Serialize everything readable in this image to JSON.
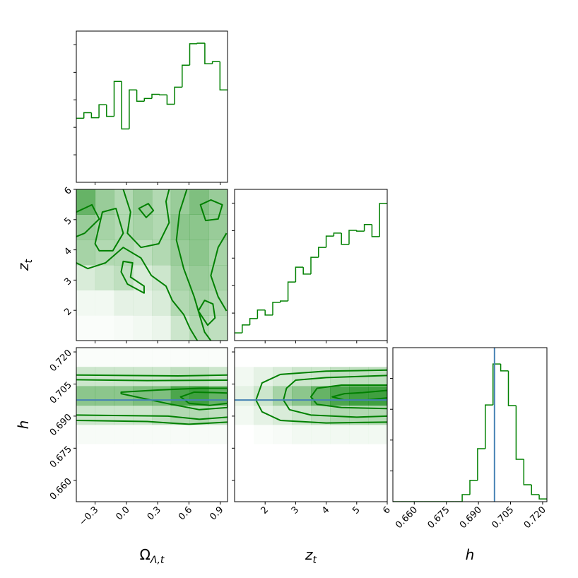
{
  "chart_data": [
    {
      "type": "histogram",
      "color": "#008000",
      "bins": [
        -0.48,
        -0.4075,
        -0.335,
        -0.2625,
        -0.19,
        -0.1175,
        -0.045,
        0.0275,
        0.1,
        0.1725,
        0.245,
        0.3175,
        0.39,
        0.4625,
        0.535,
        0.6075,
        0.68,
        0.7525,
        0.825,
        0.8975,
        0.97
      ],
      "values": [
        233,
        253,
        235,
        282,
        240,
        367,
        194,
        336,
        295,
        305,
        320,
        318,
        284,
        346,
        426,
        504,
        506,
        431,
        439,
        336
      ],
      "xlim": [
        -0.48,
        0.97
      ],
      "ylim": [
        0,
        550
      ],
      "xticks": [
        -0.3,
        0,
        0.3,
        0.6,
        0.9
      ],
      "yticks": [
        100,
        200,
        300,
        400,
        500
      ],
      "xtick_labels": false,
      "ytick_labels": false
    },
    {
      "type": "contour",
      "color": "#008000",
      "xlim": [
        -0.48,
        0.97
      ],
      "ylim": [
        1,
        6
      ],
      "xticks": [
        -0.3,
        0,
        0.3,
        0.6,
        0.9
      ],
      "yticks": [
        2,
        3,
        4,
        5,
        6
      ],
      "xtick_labels": false,
      "ytick_labels": true,
      "y_label": {
        "text": "z",
        "subscript": "t"
      },
      "density": [
        [
          0.6,
          0.4,
          0.3,
          0.4,
          0.3,
          0.4,
          0.5,
          0.4
        ],
        [
          0.4,
          0.35,
          0.3,
          0.35,
          0.3,
          0.45,
          0.45,
          0.4
        ],
        [
          0.35,
          0.3,
          0.3,
          0.25,
          0.3,
          0.4,
          0.45,
          0.35
        ],
        [
          0.15,
          0.2,
          0.25,
          0.15,
          0.2,
          0.35,
          0.4,
          0.35
        ],
        [
          0.05,
          0.05,
          0.1,
          0.1,
          0.15,
          0.3,
          0.35,
          0.3
        ],
        [
          0.02,
          0.02,
          0.03,
          0.05,
          0.08,
          0.2,
          0.3,
          0.25
        ]
      ],
      "contours": [
        {
          "closed": false,
          "x": [
            -0.48,
            -0.37,
            -0.2,
            -0.03,
            0.14,
            0.24,
            0.38,
            0.44,
            0.55,
            0.61,
            0.68
          ],
          "y": [
            3.57,
            3.38,
            3.57,
            4.08,
            3.73,
            3.15,
            2.8,
            2.33,
            1.86,
            1.4,
            1.0
          ]
        },
        {
          "closed": false,
          "x": [
            -0.03,
            0.04,
            0.01,
            0.14,
            0.31,
            0.41,
            0.38,
            0.41
          ],
          "y": [
            6,
            5.25,
            4.55,
            4.08,
            4.2,
            4.9,
            5.6,
            6
          ]
        },
        {
          "closed": false,
          "x": [
            0.58,
            0.51,
            0.48,
            0.55,
            0.65,
            0.75,
            0.81
          ],
          "y": [
            6,
            5.25,
            4.32,
            3.38,
            2.45,
            1.28,
            1.0
          ]
        },
        {
          "closed": false,
          "x": [
            0.96,
            0.88,
            0.81,
            0.88,
            0.96
          ],
          "y": [
            4.55,
            4.08,
            3.15,
            2.45,
            1.98
          ]
        },
        {
          "closed": false,
          "x": [
            -0.48,
            -0.33,
            -0.26,
            -0.4,
            -0.48
          ],
          "y": [
            5.25,
            5.49,
            5.02,
            4.55,
            4.44
          ]
        },
        {
          "closed": true,
          "x": [
            -0.3,
            -0.23,
            -0.1,
            -0.03,
            -0.13,
            -0.26
          ],
          "y": [
            4.2,
            5.25,
            5.37,
            4.55,
            3.97,
            3.97
          ]
        },
        {
          "closed": true,
          "x": [
            0.12,
            0.21,
            0.26,
            0.19
          ],
          "y": [
            5.37,
            5.53,
            5.3,
            5.07
          ]
        },
        {
          "closed": true,
          "x": [
            0.71,
            0.81,
            0.92,
            0.88,
            0.76
          ],
          "y": [
            5.49,
            5.65,
            5.49,
            5.02,
            4.97
          ]
        },
        {
          "closed": true,
          "x": [
            0.69,
            0.75,
            0.83,
            0.85,
            0.78
          ],
          "y": [
            1.98,
            2.33,
            2.21,
            1.75,
            1.51
          ]
        },
        {
          "closed": true,
          "x": [
            -0.03,
            0.06,
            0.04,
            0.17,
            0.17,
            0.01,
            -0.05
          ],
          "y": [
            3.62,
            3.57,
            3.1,
            2.8,
            2.57,
            2.87,
            3.27
          ]
        }
      ]
    },
    {
      "type": "histogram",
      "color": "#008000",
      "bins": [
        1,
        1.25,
        1.5,
        1.75,
        2,
        2.25,
        2.5,
        2.75,
        3,
        3.25,
        3.5,
        3.75,
        4,
        4.25,
        4.5,
        4.75,
        5,
        5.25,
        5.5,
        5.75,
        6
      ],
      "values": [
        28,
        57,
        80,
        111,
        93,
        139,
        144,
        213,
        267,
        242,
        303,
        339,
        380,
        391,
        350,
        401,
        398,
        422,
        378,
        499
      ],
      "xlim": [
        1,
        6
      ],
      "ylim": [
        0,
        550
      ],
      "xticks": [
        2,
        3,
        4,
        5,
        6
      ],
      "yticks": [
        100,
        200,
        300,
        400,
        500
      ],
      "xtick_labels": false,
      "ytick_labels": false
    },
    {
      "type": "contour",
      "color": "#008000",
      "xlim": [
        -0.48,
        0.97
      ],
      "ylim": [
        0.65,
        0.722
      ],
      "xticks": [
        {
          "value": -0.3,
          "label": "−0.3"
        },
        {
          "value": 0.0,
          "label": "0.0"
        },
        0.3,
        0.6,
        0.9
      ],
      "yticks": [
        {
          "value": 0.66,
          "label": "0.660"
        },
        0.675,
        {
          "value": 0.69,
          "label": "0.690"
        },
        0.705,
        {
          "value": 0.72,
          "label": "0.720"
        }
      ],
      "xtick_labels": true,
      "ytick_labels": true,
      "x_label": {
        "text": "Ω",
        "subscript": "Λ,t"
      },
      "y_label": {
        "text": "h",
        "subscript": null
      },
      "hline": 0.6975,
      "truth_color": "#4682b4",
      "density": [
        [
          0.02,
          0.02,
          0.02,
          0.02,
          0.02,
          0.02,
          0.02,
          0.02
        ],
        [
          0.2,
          0.2,
          0.2,
          0.2,
          0.2,
          0.25,
          0.25,
          0.2
        ],
        [
          0.45,
          0.45,
          0.45,
          0.5,
          0.5,
          0.7,
          0.75,
          0.6
        ],
        [
          0.2,
          0.2,
          0.2,
          0.2,
          0.25,
          0.3,
          0.3,
          0.25
        ],
        [
          0.03,
          0.03,
          0.03,
          0.03,
          0.03,
          0.03,
          0.03,
          0.03
        ],
        [
          0,
          0,
          0,
          0,
          0,
          0,
          0,
          0
        ],
        [
          0,
          0,
          0,
          0,
          0,
          0,
          0,
          0
        ],
        [
          0,
          0,
          0,
          0,
          0,
          0,
          0,
          0
        ]
      ],
      "contours": [
        {
          "closed": false,
          "x": [
            -0.48,
            0.0,
            0.5,
            0.97
          ],
          "y": [
            0.7092,
            0.709,
            0.7088,
            0.7092
          ]
        },
        {
          "closed": false,
          "x": [
            -0.48,
            0.2,
            0.6,
            0.97
          ],
          "y": [
            0.688,
            0.6875,
            0.6862,
            0.6872
          ]
        },
        {
          "closed": false,
          "x": [
            -0.48,
            0.2,
            0.97
          ],
          "y": [
            0.707,
            0.7066,
            0.7068
          ]
        },
        {
          "closed": false,
          "x": [
            -0.48,
            0.4,
            0.7,
            0.97
          ],
          "y": [
            0.6905,
            0.69,
            0.6885,
            0.6895
          ]
        },
        {
          "closed": true,
          "x": [
            -0.05,
            0.3,
            0.7,
            0.97,
            0.97,
            0.7,
            0.4,
            -0.05
          ],
          "y": [
            0.7012,
            0.7022,
            0.703,
            0.703,
            0.694,
            0.693,
            0.6958,
            0.7005
          ]
        },
        {
          "closed": true,
          "x": [
            0.52,
            0.65,
            0.85,
            0.97,
            0.97,
            0.8,
            0.6
          ],
          "y": [
            0.699,
            0.7012,
            0.701,
            0.7008,
            0.696,
            0.695,
            0.696
          ]
        }
      ]
    },
    {
      "type": "contour",
      "color": "#008000",
      "xlim": [
        1,
        6
      ],
      "ylim": [
        0.65,
        0.722
      ],
      "xticks": [
        2,
        3,
        4,
        5,
        6
      ],
      "yticks": [
        0.66,
        0.675,
        0.69,
        0.705,
        0.72
      ],
      "xtick_labels": true,
      "ytick_labels": false,
      "x_label": {
        "text": "z",
        "subscript": "t"
      },
      "hline": 0.6975,
      "truth_color": "#4682b4",
      "density": [
        [
          0,
          0,
          0,
          0,
          0,
          0,
          0,
          0
        ],
        [
          0.05,
          0.1,
          0.15,
          0.2,
          0.2,
          0.25,
          0.25,
          0.25
        ],
        [
          0.1,
          0.2,
          0.35,
          0.45,
          0.6,
          0.7,
          0.75,
          0.75
        ],
        [
          0.05,
          0.1,
          0.15,
          0.2,
          0.25,
          0.3,
          0.3,
          0.3
        ],
        [
          0,
          0.02,
          0.03,
          0.05,
          0.05,
          0.05,
          0.05,
          0.05
        ],
        [
          0,
          0,
          0,
          0,
          0,
          0,
          0,
          0
        ],
        [
          0,
          0,
          0,
          0,
          0,
          0,
          0,
          0
        ],
        [
          0,
          0,
          0,
          0,
          0,
          0,
          0,
          0
        ]
      ],
      "contours": [
        {
          "closed": false,
          "x": [
            6,
            4,
            2.5,
            1.9,
            1.7,
            1.9,
            2.5,
            4,
            6
          ],
          "y": [
            0.7115,
            0.711,
            0.7095,
            0.7055,
            0.6975,
            0.692,
            0.688,
            0.6868,
            0.6872
          ]
        },
        {
          "closed": false,
          "x": [
            6,
            4,
            3,
            2.7,
            2.6,
            2.8,
            3.5,
            5,
            6
          ],
          "y": [
            0.709,
            0.708,
            0.7068,
            0.703,
            0.6975,
            0.693,
            0.6905,
            0.6895,
            0.69
          ]
        },
        {
          "closed": false,
          "x": [
            6,
            4.5,
            3.7,
            3.5,
            3.7,
            4.5,
            6
          ],
          "y": [
            0.7045,
            0.7045,
            0.703,
            0.699,
            0.6955,
            0.694,
            0.6935
          ]
        },
        {
          "closed": false,
          "x": [
            6,
            5.2,
            4.6,
            4.2,
            4.6,
            5.3,
            6
          ],
          "y": [
            0.702,
            0.701,
            0.7005,
            0.699,
            0.6975,
            0.6975,
            0.6985
          ]
        }
      ]
    },
    {
      "type": "histogram",
      "color": "#008000",
      "bins": [
        0.65,
        0.6536,
        0.6572,
        0.6608,
        0.6644,
        0.668,
        0.6716,
        0.6752,
        0.6788,
        0.6824,
        0.686,
        0.6896,
        0.6932,
        0.6968,
        0.7004,
        0.704,
        0.7076,
        0.7112,
        0.7148,
        0.7184,
        0.722
      ],
      "values": [
        0,
        0,
        0,
        0,
        0,
        0,
        0,
        0,
        0,
        46,
        138,
        344,
        628,
        894,
        849,
        624,
        275,
        110,
        46,
        18
      ],
      "xlim": [
        0.65,
        0.722
      ],
      "ylim": [
        0,
        1000
      ],
      "xticks": [
        {
          "value": 0.66,
          "label": "0.660"
        },
        0.675,
        {
          "value": 0.69,
          "label": "0.690"
        },
        0.705,
        {
          "value": 0.72,
          "label": "0.720"
        }
      ],
      "yticks": [
        200,
        400,
        600,
        800
      ],
      "xtick_labels": true,
      "ytick_labels": false,
      "x_label": {
        "text": "h",
        "subscript": null
      },
      "vline": 0.6975,
      "truth_color": "#4682b4"
    }
  ]
}
